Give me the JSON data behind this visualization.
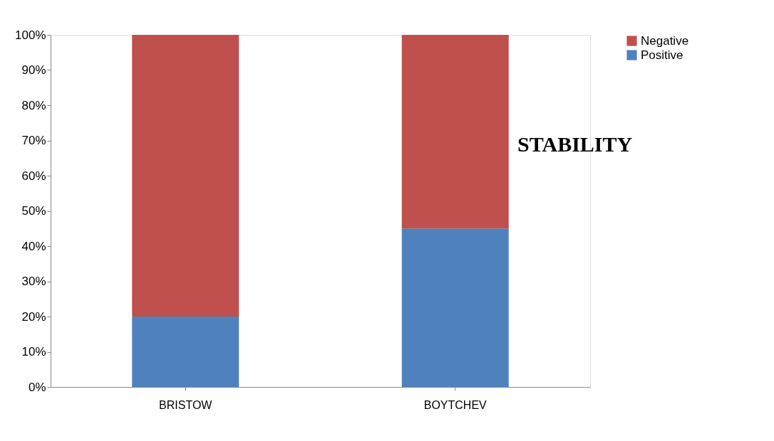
{
  "chart_data": {
    "type": "bar",
    "title": "STABILITY",
    "stacked": true,
    "categories": [
      "BRISTOW",
      "BOYTCHEV"
    ],
    "series": [
      {
        "name": "Positive",
        "color": "#4f81bd",
        "values": [
          20,
          45
        ]
      },
      {
        "name": "Negative",
        "color": "#c0504d",
        "values": [
          80,
          55
        ]
      }
    ],
    "ylim": [
      0,
      100
    ],
    "yticks": [
      {
        "value": 0,
        "label": "0%"
      },
      {
        "value": 10,
        "label": "10%"
      },
      {
        "value": 20,
        "label": "20%"
      },
      {
        "value": 30,
        "label": "30%"
      },
      {
        "value": 40,
        "label": "40%"
      },
      {
        "value": 50,
        "label": "50%"
      },
      {
        "value": 60,
        "label": "60%"
      },
      {
        "value": 70,
        "label": "70%"
      },
      {
        "value": 80,
        "label": "80%"
      },
      {
        "value": 90,
        "label": "90%"
      },
      {
        "value": 100,
        "label": "100%"
      }
    ],
    "grid": false,
    "legend": "right"
  }
}
